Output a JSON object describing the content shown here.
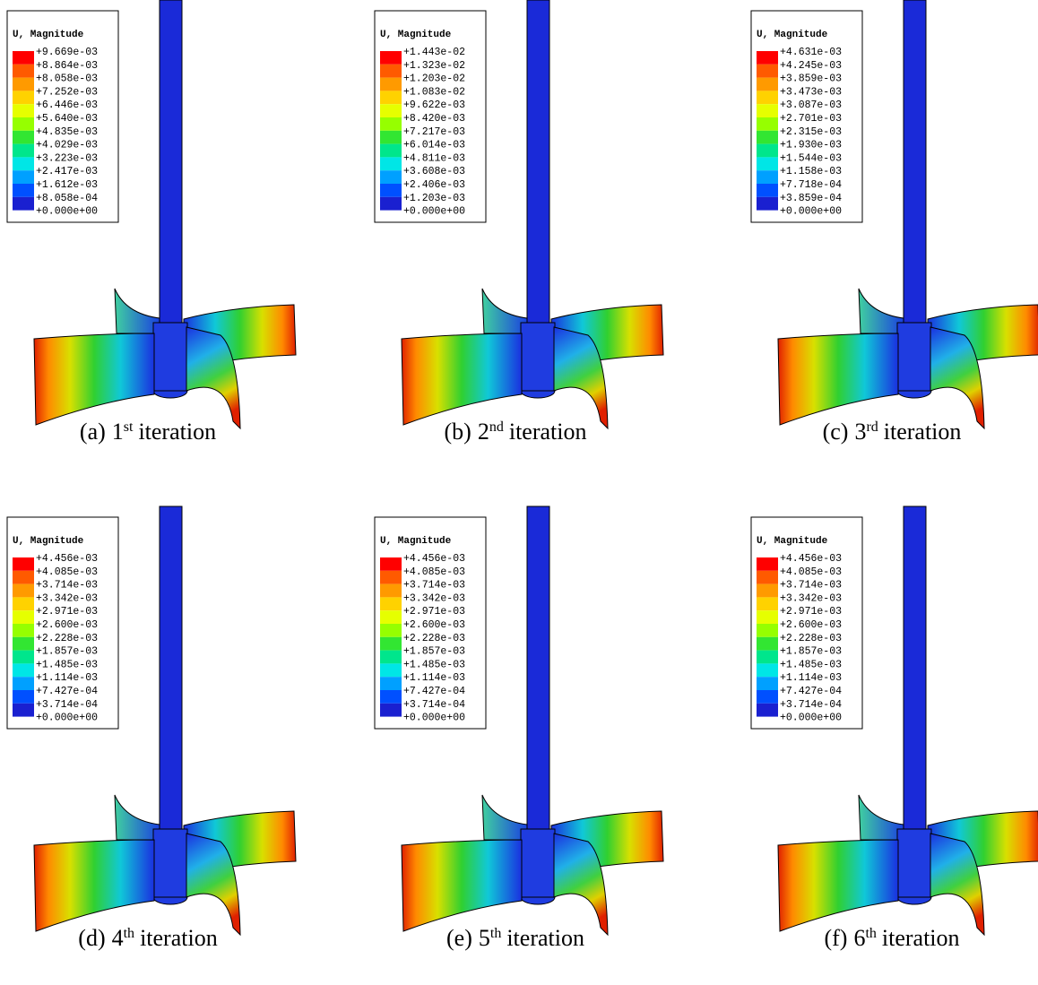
{
  "panels": [
    {
      "legend": {
        "title": "U, Magnitude",
        "values": [
          "+9.669e-03",
          "+8.864e-03",
          "+8.058e-03",
          "+7.252e-03",
          "+6.446e-03",
          "+5.640e-03",
          "+4.835e-03",
          "+4.029e-03",
          "+3.223e-03",
          "+2.417e-03",
          "+1.612e-03",
          "+8.058e-04",
          "+0.000e+00"
        ]
      },
      "caption": {
        "label": "(a)",
        "ordinal": "1",
        "suffix": "st",
        "text": "iteration"
      }
    },
    {
      "legend": {
        "title": "U, Magnitude",
        "values": [
          "+1.443e-02",
          "+1.323e-02",
          "+1.203e-02",
          "+1.083e-02",
          "+9.622e-03",
          "+8.420e-03",
          "+7.217e-03",
          "+6.014e-03",
          "+4.811e-03",
          "+3.608e-03",
          "+2.406e-03",
          "+1.203e-03",
          "+0.000e+00"
        ]
      },
      "caption": {
        "label": "(b)",
        "ordinal": "2",
        "suffix": "nd",
        "text": "iteration"
      }
    },
    {
      "legend": {
        "title": "U, Magnitude",
        "values": [
          "+4.631e-03",
          "+4.245e-03",
          "+3.859e-03",
          "+3.473e-03",
          "+3.087e-03",
          "+2.701e-03",
          "+2.315e-03",
          "+1.930e-03",
          "+1.544e-03",
          "+1.158e-03",
          "+7.718e-04",
          "+3.859e-04",
          "+0.000e+00"
        ]
      },
      "caption": {
        "label": "(c)",
        "ordinal": "3",
        "suffix": "rd",
        "text": "iteration"
      }
    },
    {
      "legend": {
        "title": "U, Magnitude",
        "values": [
          "+4.456e-03",
          "+4.085e-03",
          "+3.714e-03",
          "+3.342e-03",
          "+2.971e-03",
          "+2.600e-03",
          "+2.228e-03",
          "+1.857e-03",
          "+1.485e-03",
          "+1.114e-03",
          "+7.427e-04",
          "+3.714e-04",
          "+0.000e+00"
        ]
      },
      "caption": {
        "label": "(d)",
        "ordinal": "4",
        "suffix": "th",
        "text": "iteration"
      }
    },
    {
      "legend": {
        "title": "U, Magnitude",
        "values": [
          "+4.456e-03",
          "+4.085e-03",
          "+3.714e-03",
          "+3.342e-03",
          "+2.971e-03",
          "+2.600e-03",
          "+2.228e-03",
          "+1.857e-03",
          "+1.485e-03",
          "+1.114e-03",
          "+7.427e-04",
          "+3.714e-04",
          "+0.000e+00"
        ]
      },
      "caption": {
        "label": "(e)",
        "ordinal": "5",
        "suffix": "th",
        "text": "iteration"
      }
    },
    {
      "legend": {
        "title": "U, Magnitude",
        "values": [
          "+4.456e-03",
          "+4.085e-03",
          "+3.714e-03",
          "+3.342e-03",
          "+2.971e-03",
          "+2.600e-03",
          "+2.228e-03",
          "+1.857e-03",
          "+1.485e-03",
          "+1.114e-03",
          "+7.427e-04",
          "+3.714e-04",
          "+0.000e+00"
        ]
      },
      "caption": {
        "label": "(f)",
        "ordinal": "6",
        "suffix": "th",
        "text": "iteration"
      }
    }
  ]
}
